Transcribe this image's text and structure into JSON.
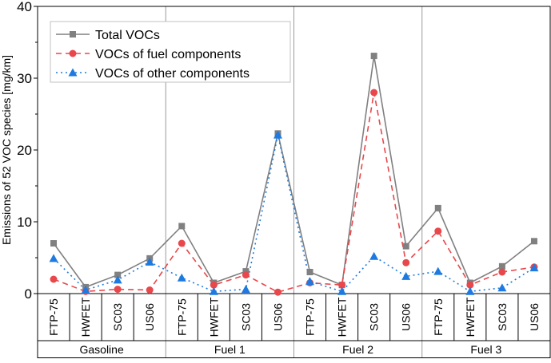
{
  "chart_data": {
    "type": "line",
    "title": "",
    "xlabel": "",
    "ylabel": "Emissions of 52 VOC species [mg/km]",
    "ylim": [
      0,
      40
    ],
    "yticks": [
      0,
      10,
      20,
      30,
      40
    ],
    "grid": false,
    "legend_position": "top-left",
    "groups": [
      {
        "name": "Gasoline",
        "cycles": [
          "FTP-75",
          "HWFET",
          "SC03",
          "US06"
        ]
      },
      {
        "name": "Fuel 1",
        "cycles": [
          "FTP-75",
          "HWFET",
          "SC03",
          "US06"
        ]
      },
      {
        "name": "Fuel 2",
        "cycles": [
          "FTP-75",
          "HWFET",
          "SC03",
          "US06"
        ]
      },
      {
        "name": "Fuel 3",
        "cycles": [
          "FTP-75",
          "HWFET",
          "SC03",
          "US06"
        ]
      }
    ],
    "series": [
      {
        "name": "Total VOCs",
        "color": "#808080",
        "marker": "square",
        "line_style": "solid",
        "values": [
          7.0,
          0.9,
          2.6,
          4.9,
          9.4,
          1.5,
          3.1,
          22.3,
          3.0,
          1.2,
          33.1,
          6.6,
          11.9,
          1.5,
          3.8,
          7.3
        ]
      },
      {
        "name": "VOCs of fuel components",
        "color": "#e8474b",
        "marker": "circle",
        "line_style": "dashed",
        "values": [
          2.0,
          0.3,
          0.6,
          0.5,
          7.0,
          1.2,
          2.6,
          0.2,
          1.5,
          1.2,
          28.0,
          4.3,
          8.7,
          1.2,
          3.0,
          3.7
        ]
      },
      {
        "name": "VOCs of other components",
        "color": "#1e7ae0",
        "marker": "triangle",
        "line_style": "dotted",
        "values": [
          4.9,
          0.5,
          1.9,
          4.4,
          2.2,
          0.3,
          0.6,
          22.1,
          1.7,
          0.3,
          5.2,
          2.4,
          3.1,
          0.3,
          0.8,
          3.6
        ]
      }
    ]
  }
}
